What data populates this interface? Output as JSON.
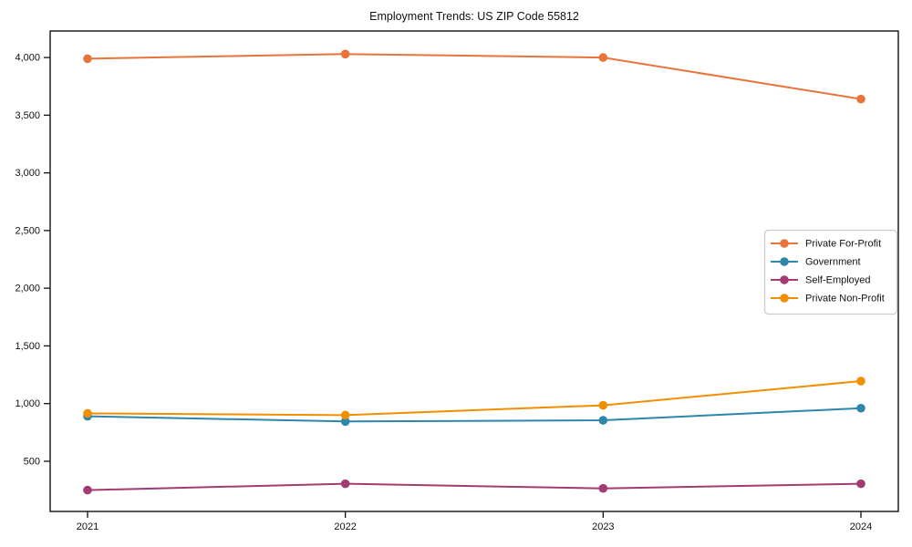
{
  "title": "Employment Trends: US ZIP Code 55812",
  "chart_data": {
    "type": "line",
    "title": "Employment Trends: US ZIP Code 55812",
    "xlabel": "",
    "ylabel": "",
    "categories": [
      "2021",
      "2022",
      "2023",
      "2024"
    ],
    "series": [
      {
        "name": "Private For-Profit",
        "color": "#E8743B",
        "values": [
          3990,
          4030,
          4000,
          3640
        ]
      },
      {
        "name": "Government",
        "color": "#2E86AB",
        "values": [
          890,
          845,
          855,
          960
        ]
      },
      {
        "name": "Self-Employed",
        "color": "#A23B72",
        "values": [
          250,
          305,
          265,
          305
        ]
      },
      {
        "name": "Private Non-Profit",
        "color": "#F18F01",
        "values": [
          915,
          900,
          985,
          1195
        ]
      }
    ],
    "ylim": [
      65,
      4230
    ],
    "yticks": [
      500,
      1000,
      1500,
      2000,
      2500,
      3000,
      3500,
      4000
    ],
    "ytick_labels": [
      "500",
      "1,000",
      "1,500",
      "2,000",
      "2,500",
      "3,000",
      "3,500",
      "4,000"
    ],
    "grid": false,
    "legend_position": "center right",
    "legend_entries": [
      "Private For-Profit",
      "Government",
      "Self-Employed",
      "Private Non-Profit"
    ]
  }
}
